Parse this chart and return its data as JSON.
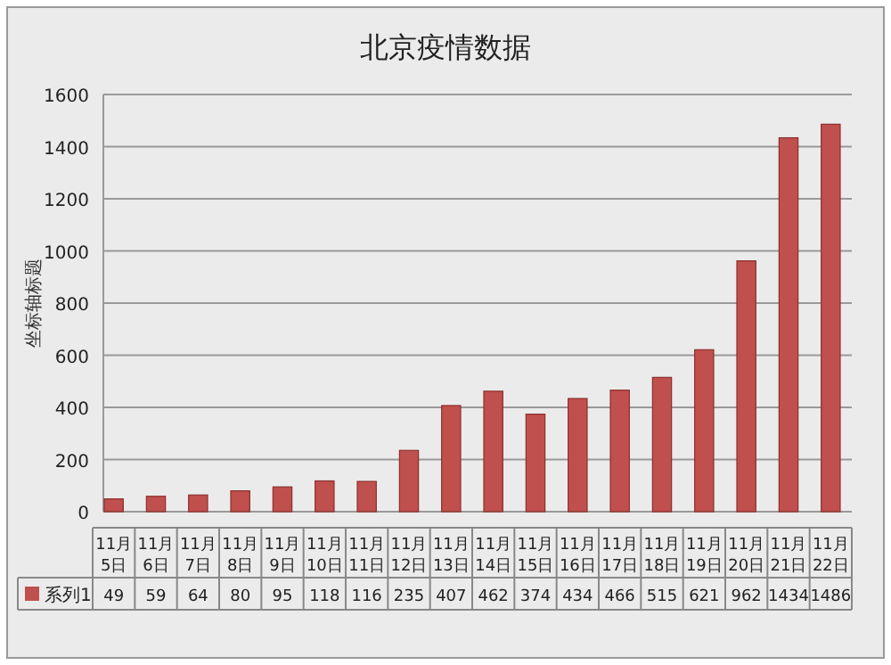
{
  "chart_data": {
    "type": "bar",
    "title": "北京疫情数据",
    "ylabel": "坐标轴标题",
    "categories": [
      "11月5日",
      "11月6日",
      "11月7日",
      "11月8日",
      "11月9日",
      "11月10日",
      "11月11日",
      "11月12日",
      "11月13日",
      "11月14日",
      "11月15日",
      "11月16日",
      "11月17日",
      "11月18日",
      "11月19日",
      "11月20日",
      "11月21日",
      "11月22日"
    ],
    "series": [
      {
        "name": "系列1",
        "color": "#c0504d",
        "values": [
          49,
          59,
          64,
          80,
          95,
          118,
          116,
          235,
          407,
          462,
          374,
          434,
          466,
          515,
          621,
          962,
          1434,
          1486
        ]
      }
    ],
    "ylim": [
      0,
      1600
    ],
    "yticks": [
      0,
      200,
      400,
      600,
      800,
      1000,
      1200,
      1400,
      1600
    ],
    "grid": "y",
    "legend": "bottom",
    "data_labels": true
  }
}
